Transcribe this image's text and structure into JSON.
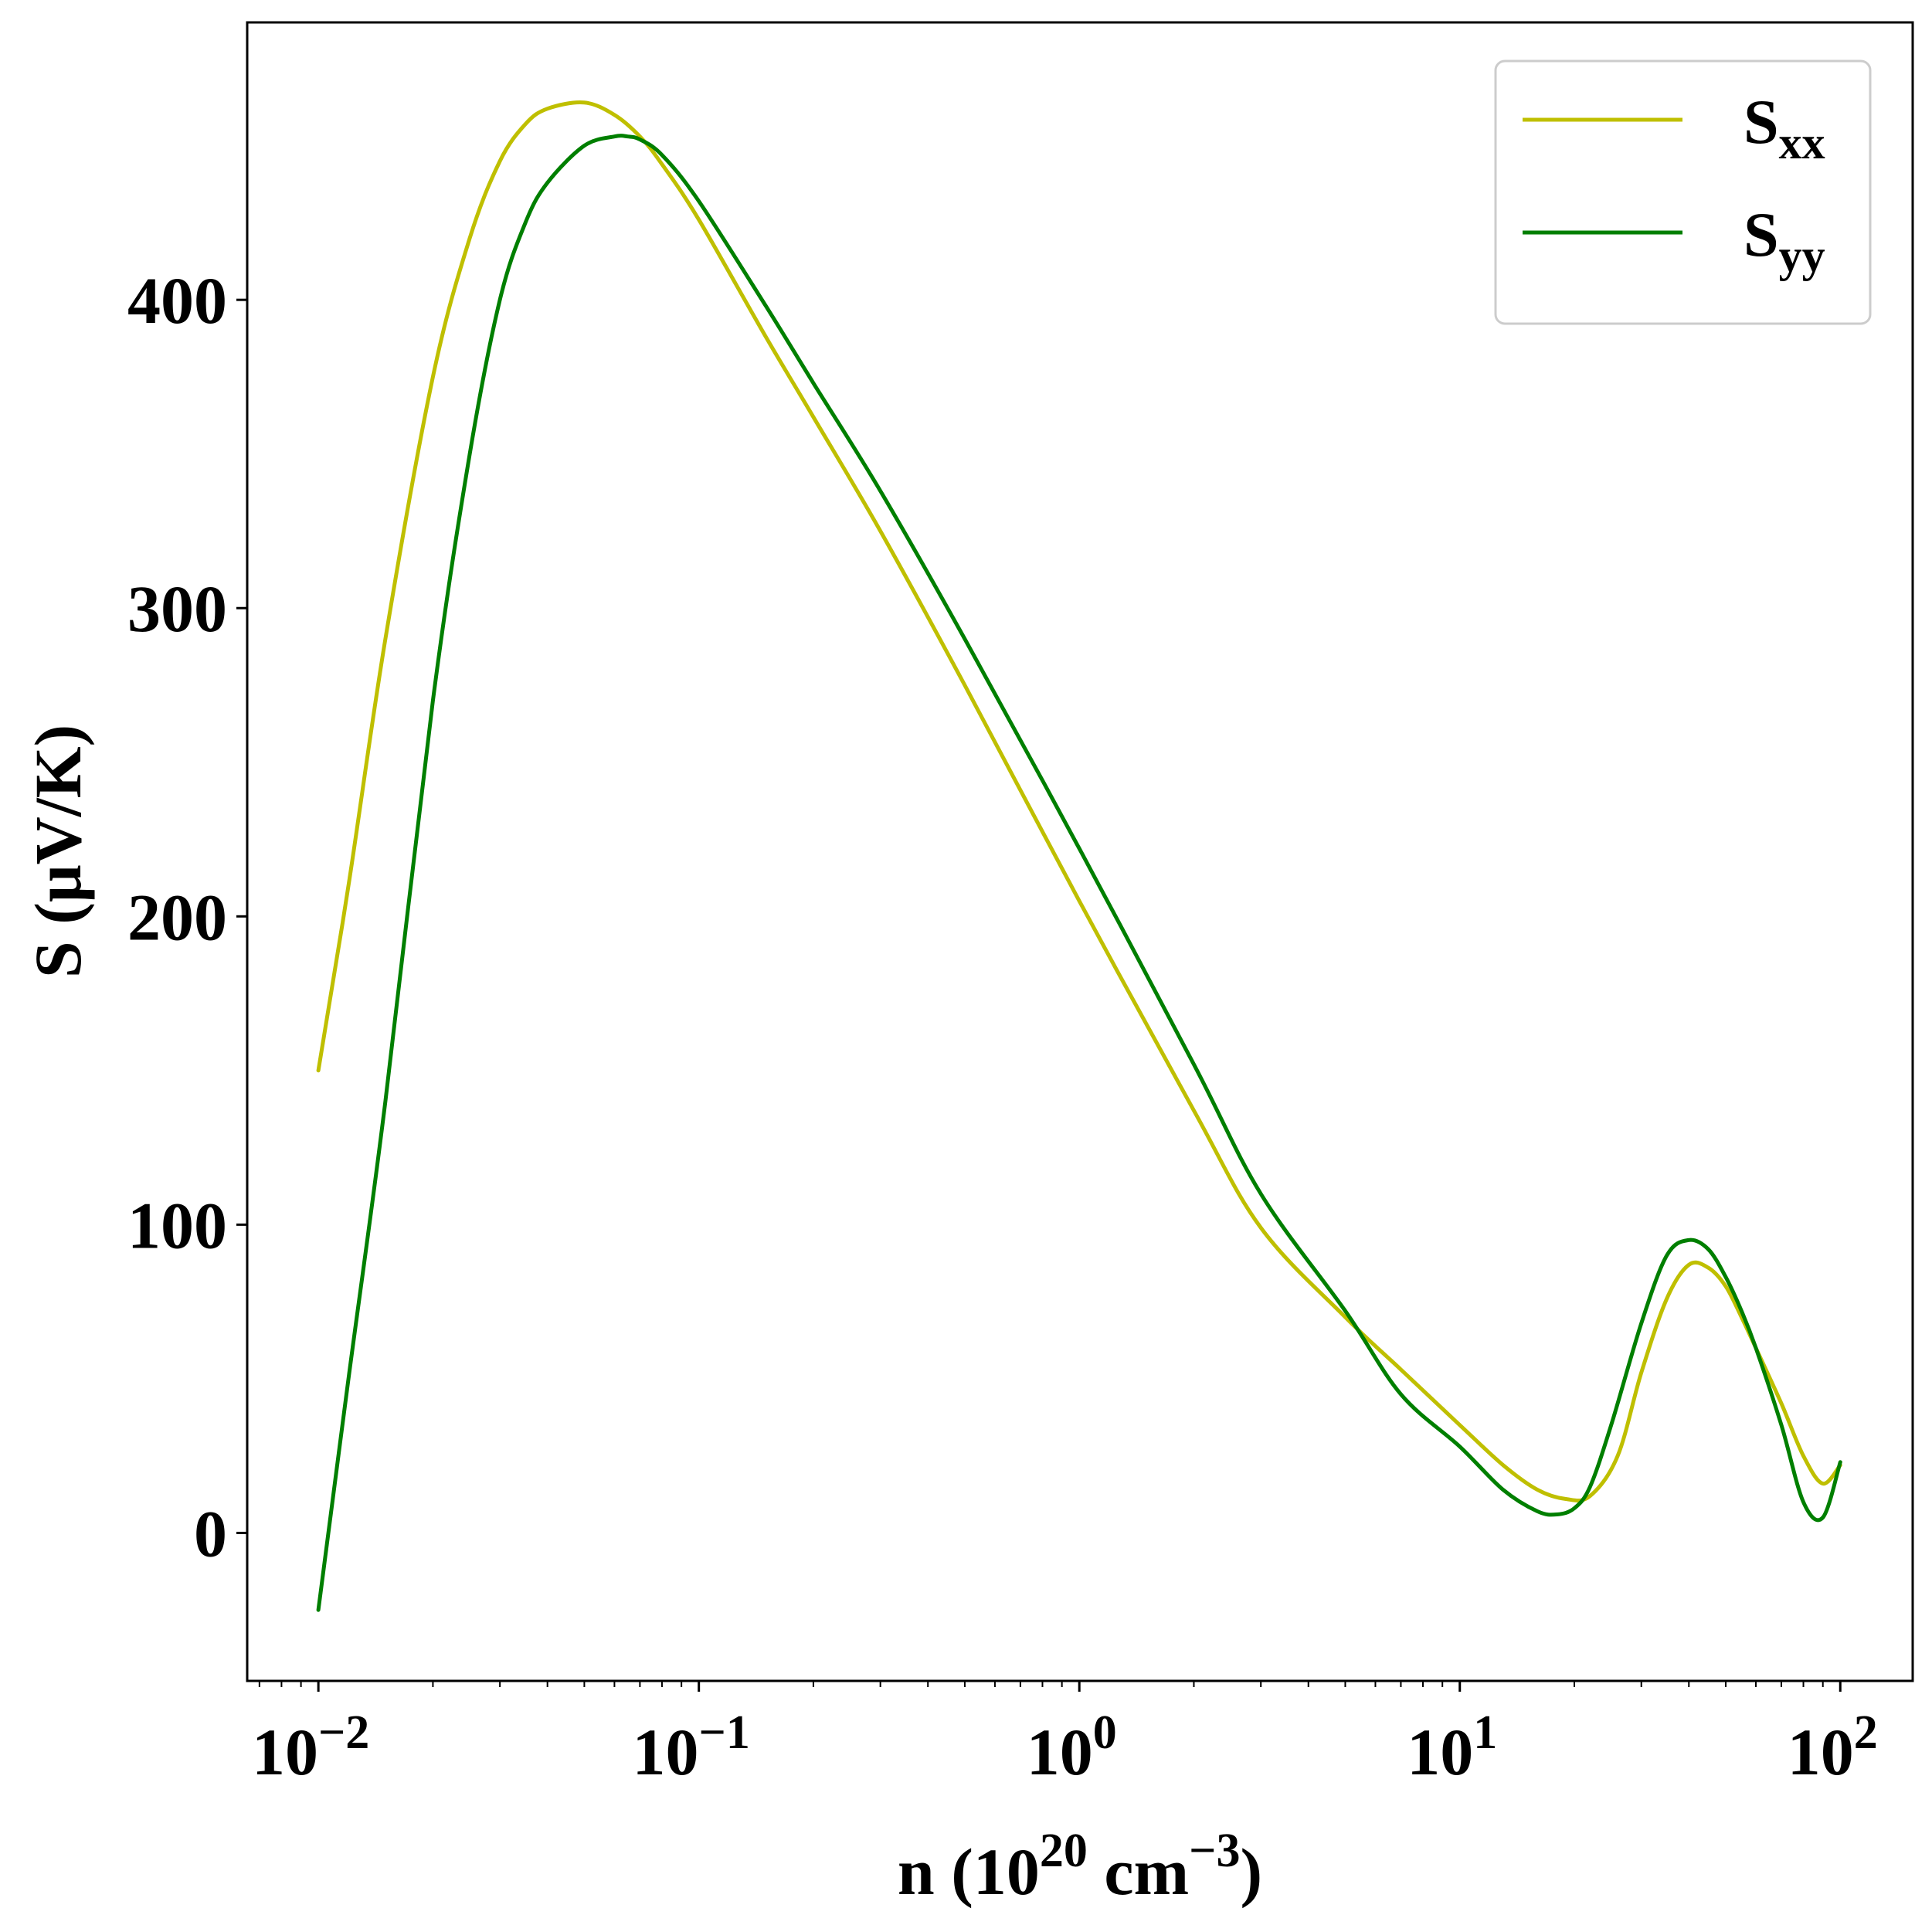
{
  "chart_data": {
    "type": "line",
    "xscale": "log",
    "xlim": [
      0.0065,
      155
    ],
    "ylim": [
      -48,
      490
    ],
    "xticks": [
      {
        "value": 0.01,
        "base": "10",
        "exp": "−2"
      },
      {
        "value": 0.1,
        "base": "10",
        "exp": "−1"
      },
      {
        "value": 1,
        "base": "10",
        "exp": "0"
      },
      {
        "value": 10,
        "base": "10",
        "exp": "1"
      },
      {
        "value": 100,
        "base": "10",
        "exp": "2"
      }
    ],
    "yticks": [
      0,
      100,
      200,
      300,
      400
    ],
    "xlabel": {
      "pre": "n (10",
      "sup1": "20",
      "mid": " cm",
      "sup2": "−3",
      "post": ")"
    },
    "ylabel": "S (μV/K)",
    "legend_position": "upper right",
    "series": [
      {
        "name": "S",
        "sub": "xx",
        "color": "#bfbf00",
        "x": [
          0.01,
          0.012,
          0.015,
          0.02,
          0.025,
          0.03,
          0.035,
          0.04,
          0.05,
          0.06,
          0.07,
          0.08,
          0.1,
          0.15,
          0.2,
          0.3,
          0.5,
          1,
          2,
          3,
          5,
          7,
          10,
          13,
          16,
          19,
          22,
          26,
          30,
          35,
          40,
          45,
          50,
          55,
          60,
          70,
          80,
          90,
          100
        ],
        "y": [
          150,
          210,
          290,
          375,
          420,
          445,
          457,
          462,
          464,
          460,
          453,
          444,
          426,
          388,
          362,
          325,
          275,
          205,
          137,
          99,
          70,
          53,
          35,
          22,
          14,
          11,
          12,
          25,
          52,
          76,
          87,
          86,
          80,
          70,
          60,
          42,
          25,
          16,
          22
        ]
      },
      {
        "name": "S",
        "sub": "yy",
        "color": "#007f00",
        "x": [
          0.01,
          0.012,
          0.015,
          0.02,
          0.025,
          0.03,
          0.035,
          0.04,
          0.05,
          0.06,
          0.065,
          0.07,
          0.08,
          0.1,
          0.15,
          0.2,
          0.3,
          0.5,
          1,
          2,
          3,
          5,
          7,
          10,
          13,
          16,
          18,
          20,
          22,
          25,
          30,
          35,
          40,
          45,
          50,
          55,
          60,
          70,
          80,
          90,
          100
        ],
        "y": [
          -25,
          50,
          140,
          270,
          350,
          400,
          425,
          438,
          450,
          453,
          453,
          452,
          447,
          432,
          398,
          373,
          338,
          290,
          222,
          152,
          110,
          72,
          45,
          28,
          14,
          7,
          6,
          8,
          15,
          35,
          68,
          90,
          95,
          92,
          83,
          72,
          60,
          35,
          10,
          5,
          23
        ]
      }
    ]
  }
}
